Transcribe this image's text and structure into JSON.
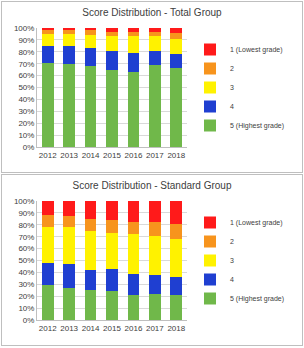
{
  "chart_data": [
    {
      "type": "bar",
      "title": "Score Distribution - Total Group",
      "stacked": true,
      "grid": true,
      "legend": "right",
      "categories": [
        "2012",
        "2013",
        "2014",
        "2015",
        "2016",
        "2017",
        "2018"
      ],
      "ylim": [
        0,
        100
      ],
      "yticks": [
        {
          "value": 0,
          "label": "0%"
        },
        {
          "value": 10,
          "label": "10%"
        },
        {
          "value": 20,
          "label": "20%"
        },
        {
          "value": 30,
          "label": "30%"
        },
        {
          "value": 40,
          "label": "40%"
        },
        {
          "value": 50,
          "label": "50%"
        },
        {
          "value": 60,
          "label": "60%"
        },
        {
          "value": 70,
          "label": "70%"
        },
        {
          "value": 80,
          "label": "80%"
        },
        {
          "value": 90,
          "label": "90%"
        },
        {
          "value": 100,
          "label": "100%"
        }
      ],
      "series": [
        {
          "name": "5 (Highest grade)",
          "color": "#70b84a",
          "values": [
            71,
            70,
            68,
            65,
            63,
            69,
            66
          ]
        },
        {
          "name": "4",
          "color": "#1f3fd1",
          "values": [
            14,
            15,
            15,
            16,
            16,
            12,
            12
          ]
        },
        {
          "name": "3",
          "color": "#fff200",
          "values": [
            10,
            10,
            11,
            12,
            14,
            12,
            13
          ]
        },
        {
          "name": "2",
          "color": "#f7941d",
          "values": [
            3,
            3,
            4,
            4,
            4,
            4,
            5
          ]
        },
        {
          "name": "1 (Lowest grade)",
          "color": "#ff1a1a",
          "values": [
            2,
            2,
            2,
            3,
            3,
            3,
            4
          ]
        }
      ]
    },
    {
      "type": "bar",
      "title": "Score Distribution - Standard Group",
      "stacked": true,
      "grid": true,
      "legend": "right",
      "categories": [
        "2012",
        "2013",
        "2014",
        "2015",
        "2016",
        "2017",
        "2018"
      ],
      "ylim": [
        0,
        100
      ],
      "yticks": [
        {
          "value": 0,
          "label": "0%"
        },
        {
          "value": 10,
          "label": "10%"
        },
        {
          "value": 20,
          "label": "20%"
        },
        {
          "value": 30,
          "label": "30%"
        },
        {
          "value": 40,
          "label": "40%"
        },
        {
          "value": 50,
          "label": "50%"
        },
        {
          "value": 60,
          "label": "60%"
        },
        {
          "value": 70,
          "label": "70%"
        },
        {
          "value": 80,
          "label": "80%"
        },
        {
          "value": 90,
          "label": "90%"
        },
        {
          "value": 100,
          "label": "100%"
        }
      ],
      "series": [
        {
          "name": "5 (Highest grade)",
          "color": "#70b84a",
          "values": [
            29,
            27,
            25,
            24,
            21,
            22,
            21
          ]
        },
        {
          "name": "4",
          "color": "#1f3fd1",
          "values": [
            19,
            20,
            17,
            19,
            18,
            16,
            15
          ]
        },
        {
          "name": "3",
          "color": "#fff200",
          "values": [
            30,
            31,
            33,
            30,
            33,
            33,
            32
          ]
        },
        {
          "name": "2",
          "color": "#f7941d",
          "values": [
            10,
            9,
            10,
            11,
            10,
            11,
            13
          ]
        },
        {
          "name": "1 (Lowest grade)",
          "color": "#ff1a1a",
          "values": [
            12,
            13,
            15,
            16,
            18,
            18,
            19
          ]
        }
      ]
    }
  ]
}
